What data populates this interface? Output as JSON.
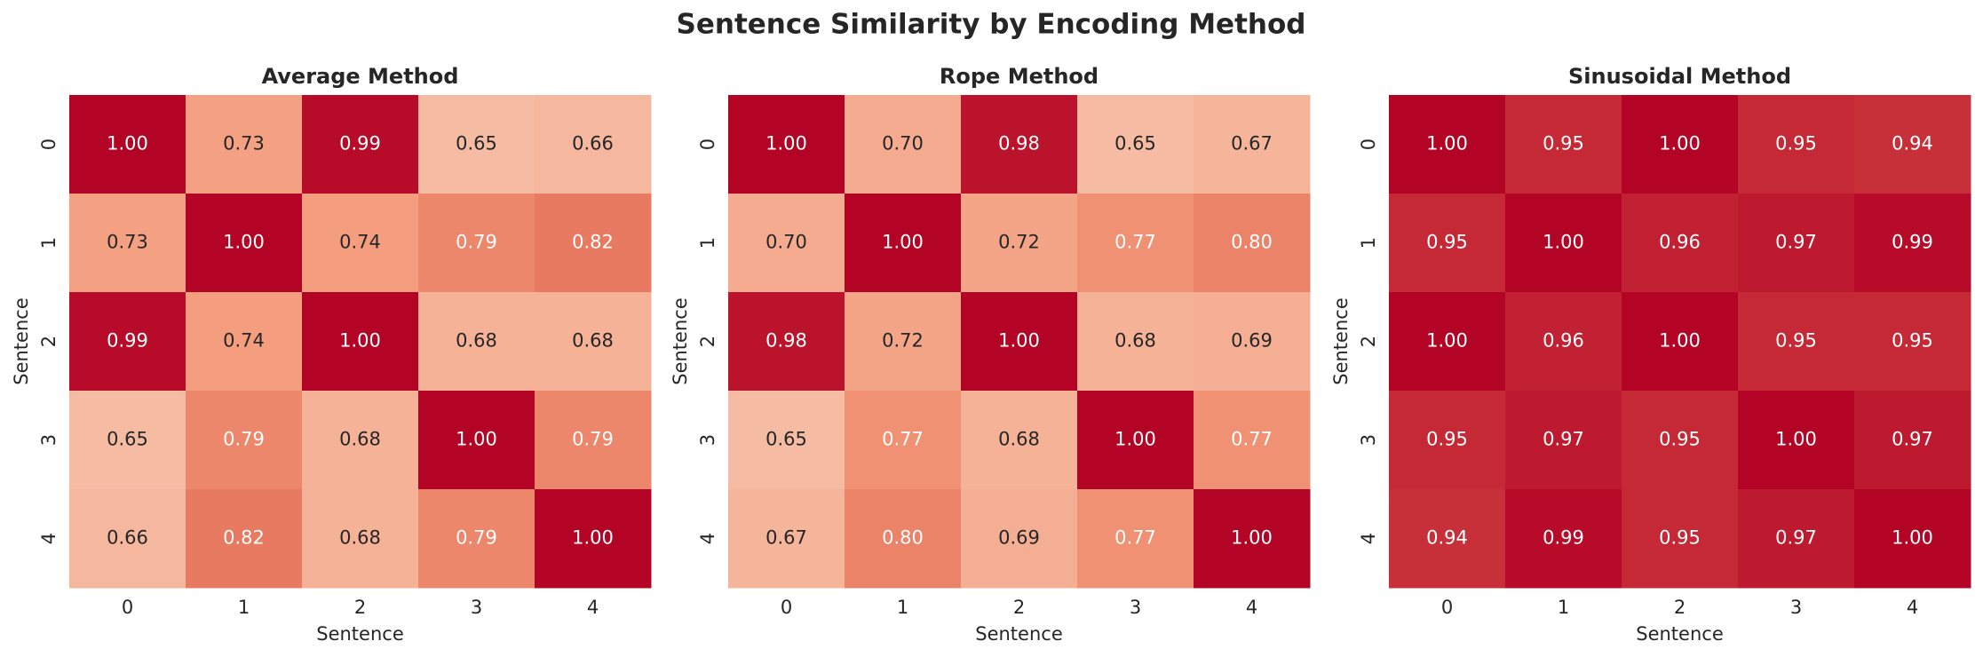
{
  "title": "Sentence Similarity by Encoding Method",
  "chart_data": [
    {
      "type": "heatmap",
      "title": "Average Method",
      "x_label": "Sentence",
      "y_label": "Sentence",
      "xticks": [
        0,
        1,
        2,
        3,
        4
      ],
      "yticks": [
        0,
        1,
        2,
        3,
        4
      ],
      "cmap": "coolwarm",
      "clim": [
        0,
        1
      ],
      "values": [
        [
          1,
          0.73,
          0.99,
          0.65,
          0.66
        ],
        [
          0.73,
          1,
          0.74,
          0.79,
          0.82
        ],
        [
          0.99,
          0.74,
          1,
          0.68,
          0.68
        ],
        [
          0.65,
          0.79,
          0.68,
          1,
          0.79
        ],
        [
          0.66,
          0.82,
          0.68,
          0.79,
          1
        ]
      ],
      "value_labels": [
        [
          "1.00",
          "0.73",
          "0.99",
          "0.65",
          "0.66"
        ],
        [
          "0.73",
          "1.00",
          "0.74",
          "0.79",
          "0.82"
        ],
        [
          "0.99",
          "0.74",
          "1.00",
          "0.68",
          "0.68"
        ],
        [
          "0.65",
          "0.79",
          "0.68",
          "1.00",
          "0.79"
        ],
        [
          "0.66",
          "0.82",
          "0.68",
          "0.79",
          "1.00"
        ]
      ]
    },
    {
      "type": "heatmap",
      "title": "Rope Method",
      "x_label": "Sentence",
      "y_label": "Sentence",
      "xticks": [
        0,
        1,
        2,
        3,
        4
      ],
      "yticks": [
        0,
        1,
        2,
        3,
        4
      ],
      "cmap": "coolwarm",
      "clim": [
        0,
        1
      ],
      "values": [
        [
          1,
          0.7,
          0.98,
          0.65,
          0.67
        ],
        [
          0.7,
          1,
          0.72,
          0.77,
          0.8
        ],
        [
          0.98,
          0.72,
          1,
          0.68,
          0.69
        ],
        [
          0.65,
          0.77,
          0.68,
          1,
          0.77
        ],
        [
          0.67,
          0.8,
          0.69,
          0.77,
          1
        ]
      ],
      "value_labels": [
        [
          "1.00",
          "0.70",
          "0.98",
          "0.65",
          "0.67"
        ],
        [
          "0.70",
          "1.00",
          "0.72",
          "0.77",
          "0.80"
        ],
        [
          "0.98",
          "0.72",
          "1.00",
          "0.68",
          "0.69"
        ],
        [
          "0.65",
          "0.77",
          "0.68",
          "1.00",
          "0.77"
        ],
        [
          "0.67",
          "0.80",
          "0.69",
          "0.77",
          "1.00"
        ]
      ]
    },
    {
      "type": "heatmap",
      "title": "Sinusoidal Method",
      "x_label": "Sentence",
      "y_label": "Sentence",
      "xticks": [
        0,
        1,
        2,
        3,
        4
      ],
      "yticks": [
        0,
        1,
        2,
        3,
        4
      ],
      "cmap": "coolwarm",
      "clim": [
        0,
        1
      ],
      "values": [
        [
          1,
          0.95,
          1,
          0.95,
          0.94
        ],
        [
          0.95,
          1,
          0.96,
          0.97,
          0.99
        ],
        [
          1,
          0.96,
          1,
          0.95,
          0.95
        ],
        [
          0.95,
          0.97,
          0.95,
          1,
          0.97
        ],
        [
          0.94,
          0.99,
          0.95,
          0.97,
          1
        ]
      ],
      "value_labels": [
        [
          "1.00",
          "0.95",
          "1.00",
          "0.95",
          "0.94"
        ],
        [
          "0.95",
          "1.00",
          "0.96",
          "0.97",
          "0.99"
        ],
        [
          "1.00",
          "0.96",
          "1.00",
          "0.95",
          "0.95"
        ],
        [
          "0.95",
          "0.97",
          "0.95",
          "1.00",
          "0.97"
        ],
        [
          "0.94",
          "0.99",
          "0.95",
          "0.97",
          "1.00"
        ]
      ]
    }
  ]
}
